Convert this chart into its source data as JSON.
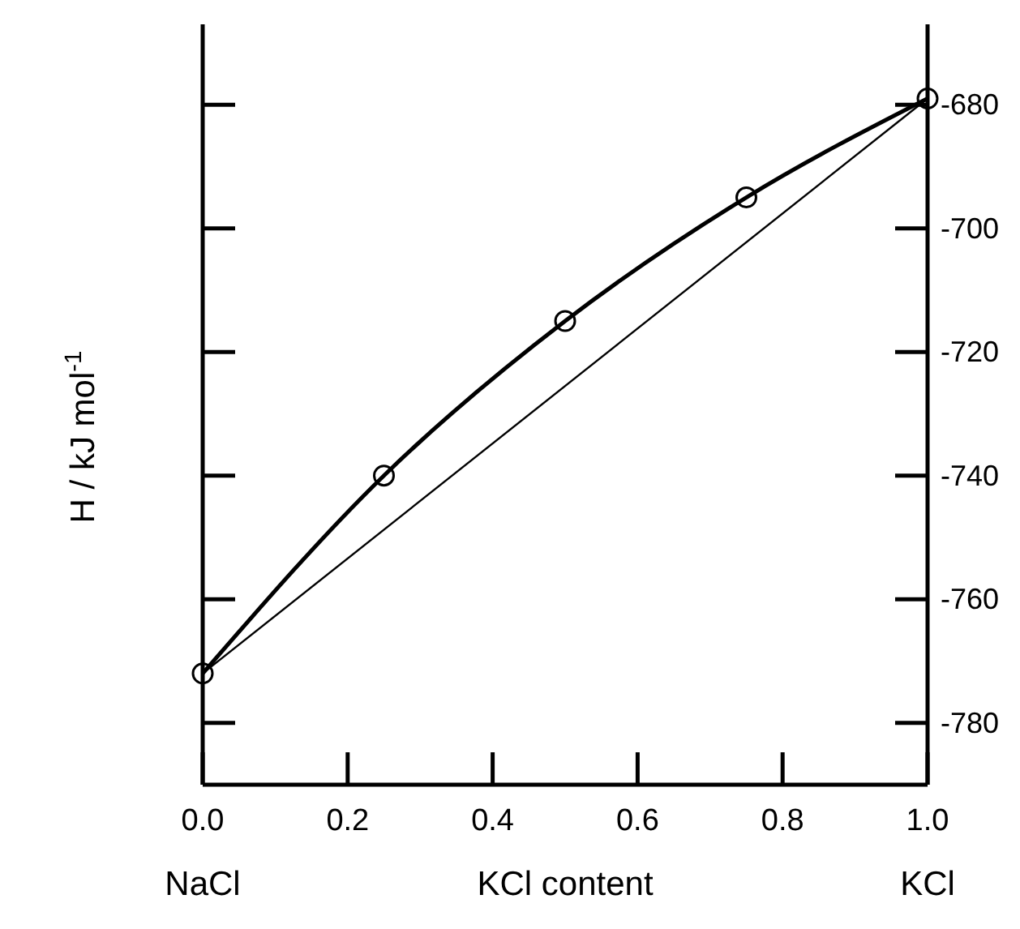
{
  "chart_data": {
    "type": "line",
    "xlabel": "KCl content",
    "ylabel": "H  / kJ mol$^{-1}$",
    "xlim": [
      0,
      1
    ],
    "xticks": [
      {
        "value": 0,
        "label": "0.0"
      },
      0.2,
      0.4,
      0.6,
      0.8,
      {
        "value": 1,
        "label": "1.0"
      }
    ],
    "ylim": [
      -790,
      -667
    ],
    "yticks": [
      -780,
      -760,
      -740,
      -720,
      -700,
      -680
    ],
    "series": [
      {
        "color": "#000000",
        "x": [
          0,
          0.25,
          0.5,
          0.75,
          1
        ],
        "values": [
          -772,
          -740,
          -715,
          -695,
          -679
        ],
        "marker": "circle"
      },
      {
        "color": "#000000",
        "x": [
          0,
          1
        ],
        "values": [
          -772,
          -679
        ],
        "marker": "none"
      }
    ],
    "annotations": [
      "NaCl",
      "KCl"
    ]
  }
}
